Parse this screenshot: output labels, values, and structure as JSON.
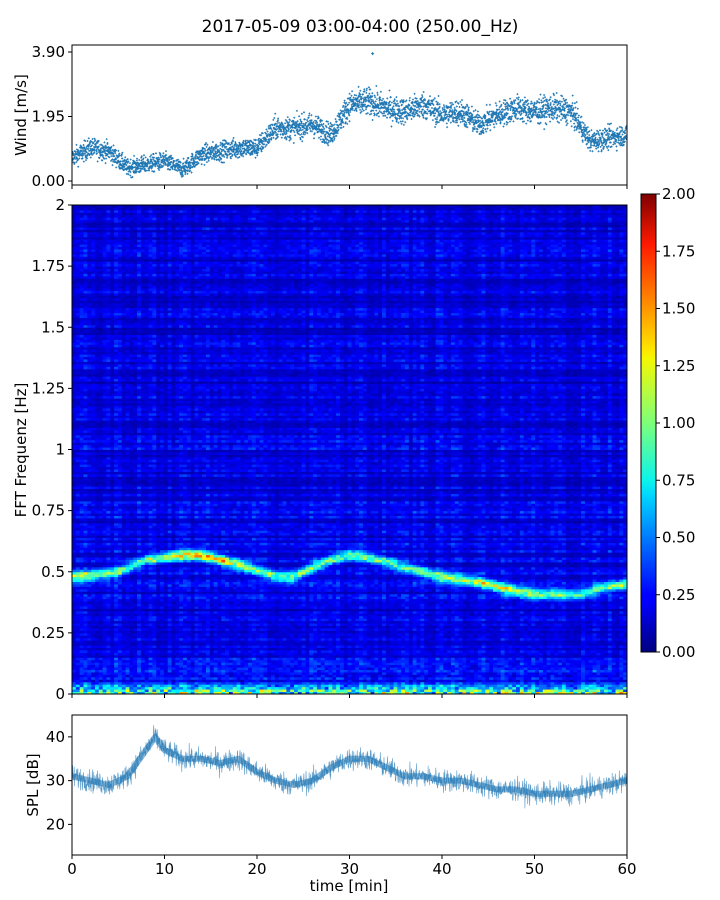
{
  "figure": {
    "title": "2017-05-09 03:00-04:00 (250.00_Hz)",
    "xlabel": "time [min]"
  },
  "chart_data": [
    {
      "id": "wind",
      "type": "scatter",
      "title": "2017-05-09 03:00-04:00 (250.00_Hz)",
      "xlabel": "",
      "ylabel": "Wind [m/s]",
      "xlim": [
        0,
        60
      ],
      "ylim": [
        0,
        3.9
      ],
      "yticks": [
        "0.00",
        "1.95",
        "3.90"
      ],
      "marker_color": "#1f77b4",
      "trend": {
        "x": [
          0,
          2,
          4,
          6,
          8,
          10,
          12,
          14,
          16,
          18,
          20,
          22,
          24,
          26,
          28,
          30,
          32,
          34,
          36,
          38,
          40,
          42,
          44,
          46,
          48,
          50,
          52,
          54,
          56,
          58,
          60
        ],
        "y": [
          0.7,
          1.0,
          0.9,
          0.4,
          0.5,
          0.6,
          0.35,
          0.8,
          0.9,
          1.0,
          1.0,
          1.6,
          1.6,
          1.7,
          1.4,
          2.3,
          2.4,
          2.2,
          2.1,
          2.3,
          2.0,
          2.1,
          1.7,
          2.0,
          2.2,
          2.1,
          2.2,
          2.1,
          1.2,
          1.3,
          1.4
        ]
      },
      "max_point": {
        "x": 32.5,
        "y": 3.85
      }
    },
    {
      "id": "spectrogram",
      "type": "heatmap",
      "ylabel": "FFT Frequenz [Hz]",
      "xlim": [
        0,
        60
      ],
      "ylim": [
        0,
        2
      ],
      "yticks": [
        "0",
        "0.25",
        "0.5",
        "0.75",
        "1",
        "1.25",
        "1.5",
        "1.75",
        "2"
      ],
      "colorbar": {
        "colormap": "jet",
        "range": [
          0,
          2
        ],
        "ticks": [
          "0.00",
          "0.25",
          "0.50",
          "0.75",
          "1.00",
          "1.25",
          "1.50",
          "1.75",
          "2.00"
        ]
      },
      "background_level": 0.2,
      "dominant_frequency": {
        "x": [
          0,
          3,
          5,
          6,
          8,
          10,
          12,
          14,
          16,
          18,
          20,
          22,
          24,
          26,
          28,
          30,
          32,
          35,
          38,
          40,
          44,
          47,
          50,
          52,
          55,
          58,
          60
        ],
        "freq": [
          0.48,
          0.49,
          0.5,
          0.52,
          0.55,
          0.56,
          0.57,
          0.57,
          0.55,
          0.53,
          0.51,
          0.48,
          0.48,
          0.52,
          0.55,
          0.57,
          0.56,
          0.53,
          0.5,
          0.48,
          0.46,
          0.43,
          0.41,
          0.41,
          0.41,
          0.44,
          0.45
        ],
        "level": [
          1.0,
          0.9,
          0.85,
          0.7,
          0.75,
          0.9,
          1.1,
          1.3,
          1.2,
          1.0,
          0.8,
          0.85,
          0.9,
          0.8,
          0.75,
          0.8,
          0.85,
          0.75,
          0.8,
          0.9,
          1.0,
          1.1,
          0.85,
          0.75,
          0.7,
          0.75,
          0.8
        ]
      },
      "low_frequency_band": {
        "freq": [
          0,
          0.05
        ],
        "level": 1.6
      }
    },
    {
      "id": "spl",
      "type": "line",
      "xlabel": "time [min]",
      "ylabel": "SPL [dB]",
      "xlim": [
        0,
        60
      ],
      "ylim": [
        13,
        45
      ],
      "yticks": [
        "20",
        "30",
        "40"
      ],
      "xticks": [
        "0",
        "10",
        "20",
        "30",
        "40",
        "50",
        "60"
      ],
      "line_color": "#1f77b4",
      "x": [
        0,
        2,
        4,
        6,
        8,
        9,
        10,
        12,
        14,
        16,
        18,
        20,
        22,
        24,
        26,
        28,
        30,
        32,
        34,
        36,
        38,
        40,
        42,
        44,
        46,
        48,
        50,
        52,
        54,
        56,
        58,
        60
      ],
      "y": [
        31,
        30,
        29,
        31,
        37,
        40,
        37,
        35,
        35,
        34,
        35,
        32,
        30,
        29,
        30,
        33,
        35,
        35,
        33,
        31,
        31,
        30,
        30,
        29,
        28,
        28,
        27,
        27,
        27,
        28,
        29,
        30
      ]
    }
  ]
}
